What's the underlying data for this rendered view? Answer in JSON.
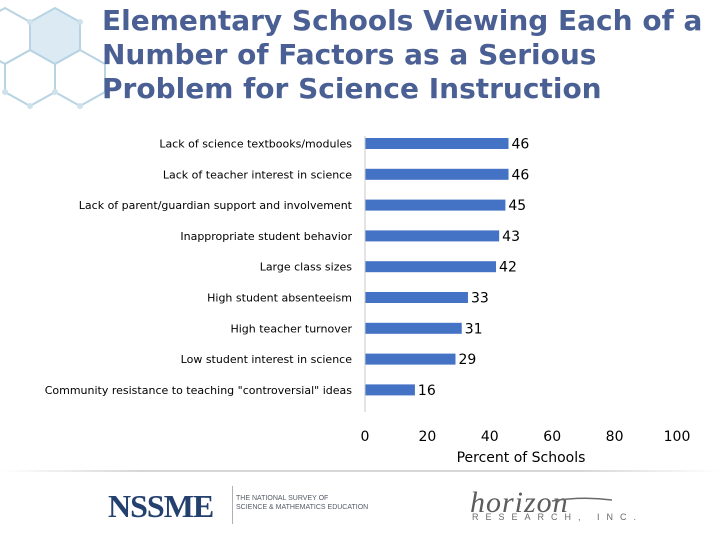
{
  "title": "Elementary Schools Viewing Each of a Number of Factors as a Serious Problem for Science Instruction",
  "chart_data": {
    "type": "bar",
    "orientation": "horizontal",
    "categories": [
      "Lack of science textbooks/modules",
      "Lack of teacher interest in science",
      "Lack of parent/guardian support and involvement",
      "Inappropriate student behavior",
      "Large class sizes",
      "High student absenteeism",
      "High teacher turnover",
      "Low student interest in science",
      "Community resistance to teaching \"controversial\" ideas"
    ],
    "values": [
      46,
      46,
      45,
      43,
      42,
      33,
      31,
      29,
      16
    ],
    "xlabel": "Percent of Schools",
    "xlim": [
      0,
      100
    ],
    "xticks": [
      0,
      20,
      40,
      60,
      80,
      100
    ],
    "bar_color": "#4472c4",
    "grid": false,
    "data_labels": true
  },
  "footer": {
    "nssme_logo": "NSSME",
    "nssme_line1": "THE NATIONAL SURVEY OF",
    "nssme_line2": "SCIENCE & MATHEMATICS EDUCATION",
    "horizon_logo": "horizon",
    "horizon_sub": "RESEARCH, INC."
  },
  "colors": {
    "title": "#4a5f93",
    "bar": "#4472c4",
    "logo": "#24406e"
  }
}
